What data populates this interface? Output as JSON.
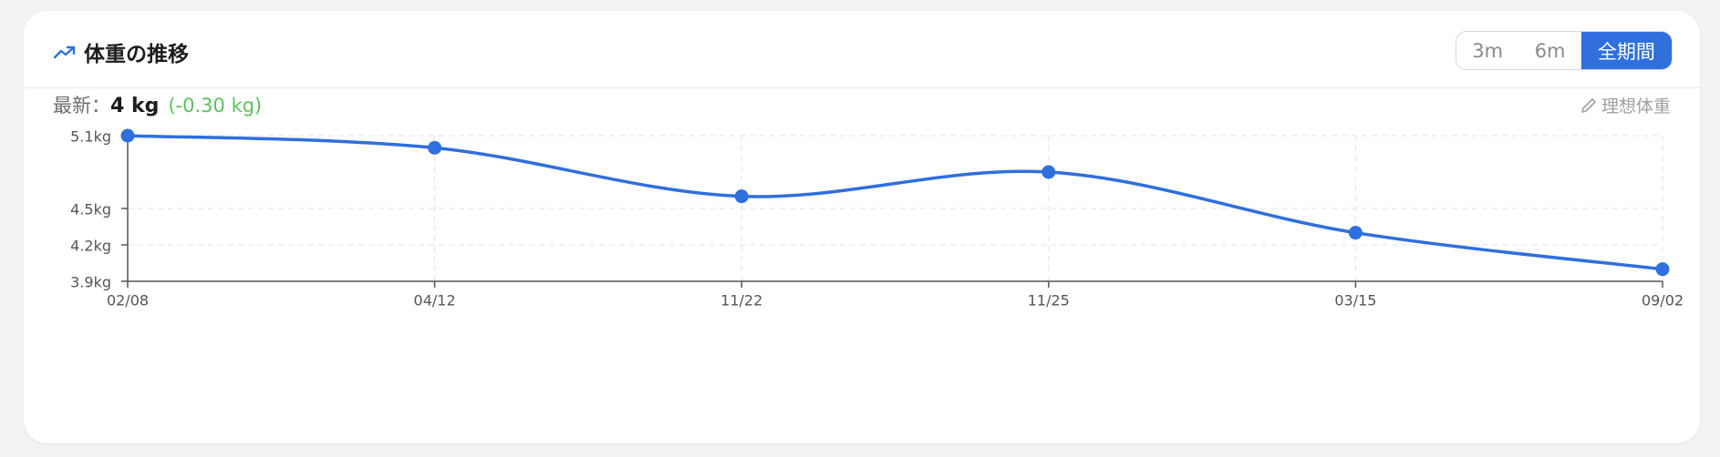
{
  "header": {
    "title": "体重の推移",
    "ranges": [
      "3m",
      "6m",
      "全期間"
    ],
    "ideal": "理想体重"
  },
  "summary": {
    "label": "最新：",
    "latest": "4 kg",
    "change": "(-0.30 kg)"
  },
  "chart_data": {
    "type": "line",
    "categories": [
      "02/08",
      "04/12",
      "11/22",
      "11/25",
      "03/15",
      "09/02"
    ],
    "values": [
      5.1,
      5.0,
      4.6,
      4.8,
      4.3,
      4.0
    ],
    "color": "#2f6fde",
    "ylim": [
      3.9,
      5.1
    ],
    "yticks": [
      {
        "value": 3.9,
        "label": "3.9kg"
      },
      {
        "value": 4.2,
        "label": "4.2kg"
      },
      {
        "value": 4.5,
        "label": "4.5kg"
      },
      {
        "value": 5.1,
        "label": "5.1kg"
      }
    ],
    "grid": true
  }
}
